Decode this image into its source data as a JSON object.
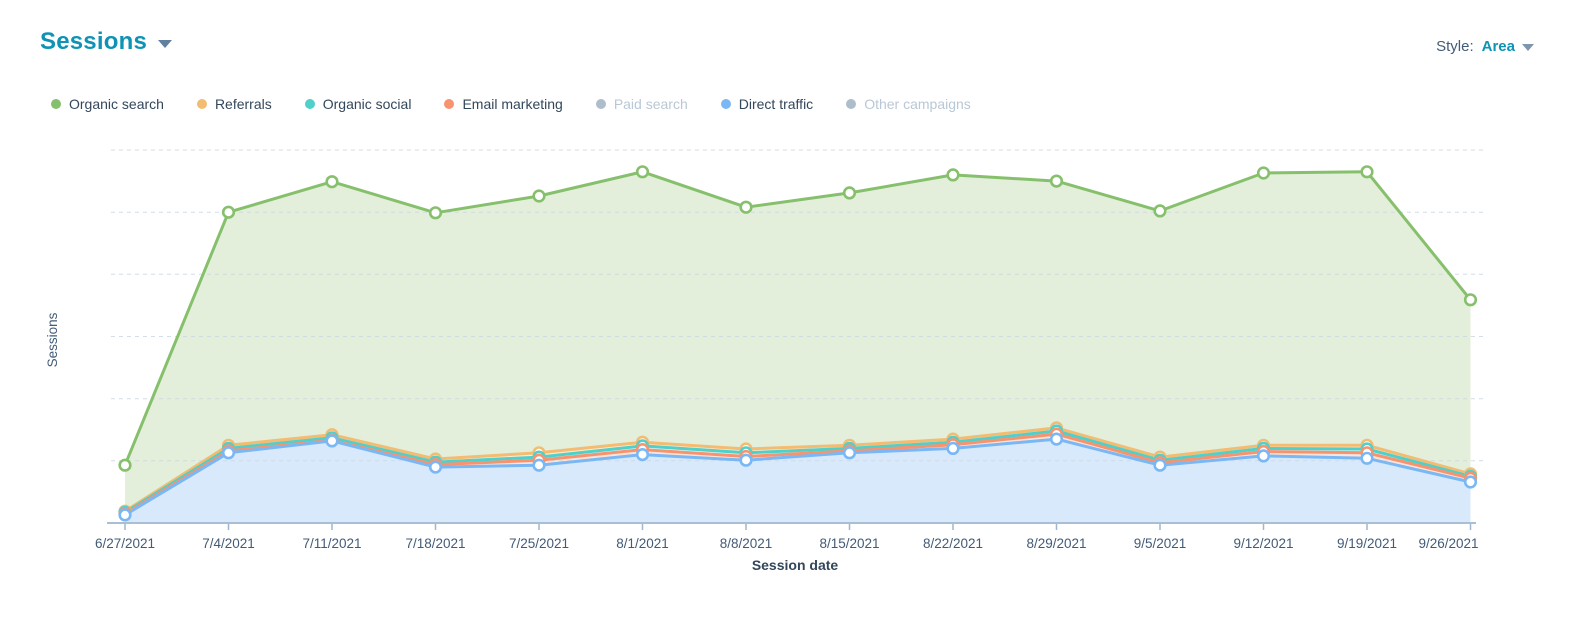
{
  "header": {
    "title": "Sessions",
    "style_label": "Style:",
    "style_value": "Area"
  },
  "legend": {
    "items": [
      {
        "label": "Organic search",
        "color": "#86c06c",
        "enabled": true
      },
      {
        "label": "Referrals",
        "color": "#f3bc72",
        "enabled": true
      },
      {
        "label": "Organic social",
        "color": "#4fd0cb",
        "enabled": true
      },
      {
        "label": "Email marketing",
        "color": "#f7936f",
        "enabled": true
      },
      {
        "label": "Paid search",
        "color": "#aebdcb",
        "enabled": false
      },
      {
        "label": "Direct traffic",
        "color": "#7ab8f5",
        "enabled": true
      },
      {
        "label": "Other campaigns",
        "color": "#aebdcb",
        "enabled": false
      }
    ]
  },
  "chart_data": {
    "type": "area",
    "title": "Sessions",
    "xlabel": "Session date",
    "ylabel": "Sessions",
    "legend_position": "top",
    "grid": "horizontal-dashed",
    "y_tick_labels_visible": false,
    "ylim": [
      0,
      6000
    ],
    "gridline_step": 1000,
    "categories": [
      "6/27/2021",
      "7/4/2021",
      "7/11/2021",
      "7/18/2021",
      "7/25/2021",
      "8/1/2021",
      "8/8/2021",
      "8/15/2021",
      "8/22/2021",
      "8/29/2021",
      "9/5/2021",
      "9/12/2021",
      "9/19/2021",
      "9/26/2021"
    ],
    "series": [
      {
        "name": "Organic search",
        "color": "#86c06c",
        "fill": "#e3efdb",
        "values": [
          930,
          5000,
          5490,
          4990,
          5260,
          5650,
          5080,
          5310,
          5600,
          5500,
          5020,
          5630,
          5650,
          3590
        ]
      },
      {
        "name": "Referrals",
        "color": "#f3bc72",
        "fill": "#fcebcf",
        "values": [
          190,
          1250,
          1420,
          1030,
          1130,
          1300,
          1190,
          1250,
          1350,
          1530,
          1060,
          1250,
          1250,
          790
        ]
      },
      {
        "name": "Organic social",
        "color": "#4fd0cb",
        "fill": "#def5f3",
        "values": [
          170,
          1200,
          1370,
          980,
          1060,
          1240,
          1130,
          1200,
          1300,
          1480,
          1010,
          1200,
          1190,
          750
        ]
      },
      {
        "name": "Email marketing",
        "color": "#f7936f",
        "fill": "#fde4da",
        "values": [
          150,
          1160,
          1330,
          940,
          1010,
          1180,
          1070,
          1160,
          1260,
          1430,
          970,
          1150,
          1130,
          720
        ]
      },
      {
        "name": "Direct traffic",
        "color": "#7ab8f5",
        "fill": "#d9e9fc",
        "values": [
          130,
          1130,
          1320,
          900,
          930,
          1100,
          1010,
          1130,
          1200,
          1350,
          930,
          1080,
          1040,
          660
        ]
      }
    ],
    "disabled_series": [
      "Paid search",
      "Other campaigns"
    ]
  }
}
